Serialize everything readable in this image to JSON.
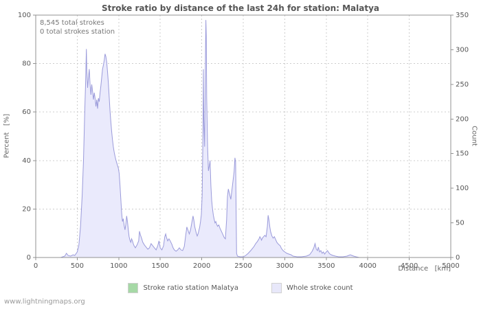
{
  "page": {
    "footer_link": "www.lightningmaps.org"
  },
  "chart": {
    "title": "Stroke ratio by distance of the last 24h for station: Malatya",
    "annotations": [
      "8,545 total strokes",
      "0 total strokes station"
    ],
    "y_left_label": "Percent   [%]",
    "y_right_label": "Count",
    "x_label": "Distance   [km]",
    "legend": [
      {
        "label": "Stroke ratio station Malatya",
        "color": "#a6d9a6"
      },
      {
        "label": "Whole stroke count",
        "color": "#e8e8fa"
      }
    ]
  },
  "chart_data": {
    "type": "area",
    "title": "Stroke ratio by distance of the last 24h for station: Malatya",
    "xlabel": "Distance [km]",
    "ylabel_left": "Percent [%]",
    "ylabel_right": "Count",
    "xlim": [
      0,
      5000
    ],
    "ylim_left_percent": [
      0,
      100
    ],
    "ylim_right_count": [
      0,
      350
    ],
    "x_ticks": [
      0,
      500,
      1000,
      1500,
      2000,
      2500,
      3000,
      3500,
      4000,
      4500,
      5000
    ],
    "y_ticks_left": [
      0,
      20,
      40,
      60,
      80,
      100
    ],
    "y_ticks_right": [
      0,
      50,
      100,
      150,
      200,
      250,
      300,
      350
    ],
    "grid": "dashed",
    "legend_position": "bottom-center",
    "totals": {
      "total_strokes": 8545,
      "total_strokes_station": 0
    },
    "series": [
      {
        "name": "Stroke ratio station Malatya",
        "axis": "left_percent",
        "color": "#a6d9a6",
        "constant_value": 0
      },
      {
        "name": "Whole stroke count",
        "axis": "right_count",
        "fill_color": "#eaeafc",
        "line_color": "#9a9ada",
        "points": [
          [
            0,
            0
          ],
          [
            300,
            0
          ],
          [
            350,
            2
          ],
          [
            370,
            6
          ],
          [
            390,
            3
          ],
          [
            420,
            2
          ],
          [
            450,
            4
          ],
          [
            470,
            3
          ],
          [
            500,
            8
          ],
          [
            520,
            18
          ],
          [
            540,
            45
          ],
          [
            560,
            90
          ],
          [
            575,
            140
          ],
          [
            590,
            210
          ],
          [
            600,
            250
          ],
          [
            610,
            301
          ],
          [
            615,
            270
          ],
          [
            625,
            245
          ],
          [
            635,
            260
          ],
          [
            645,
            272
          ],
          [
            655,
            250
          ],
          [
            665,
            235
          ],
          [
            675,
            250
          ],
          [
            685,
            240
          ],
          [
            695,
            228
          ],
          [
            705,
            238
          ],
          [
            715,
            230
          ],
          [
            725,
            218
          ],
          [
            735,
            228
          ],
          [
            745,
            215
          ],
          [
            755,
            230
          ],
          [
            765,
            225
          ],
          [
            775,
            238
          ],
          [
            785,
            248
          ],
          [
            795,
            260
          ],
          [
            805,
            272
          ],
          [
            815,
            278
          ],
          [
            825,
            285
          ],
          [
            835,
            294
          ],
          [
            845,
            290
          ],
          [
            855,
            282
          ],
          [
            865,
            268
          ],
          [
            875,
            252
          ],
          [
            885,
            232
          ],
          [
            895,
            212
          ],
          [
            905,
            196
          ],
          [
            915,
            182
          ],
          [
            925,
            170
          ],
          [
            935,
            160
          ],
          [
            945,
            152
          ],
          [
            955,
            146
          ],
          [
            965,
            141
          ],
          [
            975,
            137
          ],
          [
            985,
            133
          ],
          [
            995,
            129
          ],
          [
            1005,
            122
          ],
          [
            1015,
            105
          ],
          [
            1025,
            85
          ],
          [
            1035,
            65
          ],
          [
            1045,
            52
          ],
          [
            1055,
            56
          ],
          [
            1065,
            46
          ],
          [
            1075,
            40
          ],
          [
            1085,
            48
          ],
          [
            1095,
            60
          ],
          [
            1105,
            52
          ],
          [
            1115,
            40
          ],
          [
            1125,
            30
          ],
          [
            1135,
            25
          ],
          [
            1145,
            22
          ],
          [
            1155,
            27
          ],
          [
            1165,
            24
          ],
          [
            1175,
            20
          ],
          [
            1185,
            17
          ],
          [
            1200,
            14
          ],
          [
            1220,
            18
          ],
          [
            1240,
            24
          ],
          [
            1250,
            38
          ],
          [
            1260,
            33
          ],
          [
            1275,
            28
          ],
          [
            1290,
            22
          ],
          [
            1310,
            18
          ],
          [
            1330,
            15
          ],
          [
            1350,
            12
          ],
          [
            1370,
            14
          ],
          [
            1390,
            20
          ],
          [
            1410,
            17
          ],
          [
            1430,
            14
          ],
          [
            1450,
            11
          ],
          [
            1470,
            17
          ],
          [
            1485,
            24
          ],
          [
            1500,
            14
          ],
          [
            1520,
            11
          ],
          [
            1540,
            17
          ],
          [
            1555,
            30
          ],
          [
            1565,
            34
          ],
          [
            1575,
            29
          ],
          [
            1590,
            24
          ],
          [
            1605,
            27
          ],
          [
            1620,
            24
          ],
          [
            1640,
            19
          ],
          [
            1655,
            14
          ],
          [
            1670,
            11
          ],
          [
            1690,
            9
          ],
          [
            1710,
            11
          ],
          [
            1730,
            14
          ],
          [
            1750,
            11
          ],
          [
            1770,
            10
          ],
          [
            1790,
            16
          ],
          [
            1805,
            30
          ],
          [
            1820,
            44
          ],
          [
            1835,
            39
          ],
          [
            1850,
            34
          ],
          [
            1865,
            40
          ],
          [
            1880,
            50
          ],
          [
            1895,
            60
          ],
          [
            1905,
            54
          ],
          [
            1915,
            45
          ],
          [
            1925,
            40
          ],
          [
            1935,
            35
          ],
          [
            1945,
            31
          ],
          [
            1955,
            34
          ],
          [
            1965,
            39
          ],
          [
            1975,
            44
          ],
          [
            1985,
            52
          ],
          [
            1995,
            62
          ],
          [
            2005,
            90
          ],
          [
            2015,
            180
          ],
          [
            2020,
            272
          ],
          [
            2025,
            200
          ],
          [
            2035,
            160
          ],
          [
            2045,
            290
          ],
          [
            2050,
            343
          ],
          [
            2055,
            320
          ],
          [
            2060,
            230
          ],
          [
            2070,
            160
          ],
          [
            2080,
            125
          ],
          [
            2090,
            132
          ],
          [
            2100,
            140
          ],
          [
            2110,
            104
          ],
          [
            2120,
            82
          ],
          [
            2130,
            70
          ],
          [
            2140,
            61
          ],
          [
            2150,
            55
          ],
          [
            2160,
            50
          ],
          [
            2170,
            52
          ],
          [
            2180,
            48
          ],
          [
            2190,
            45
          ],
          [
            2205,
            47
          ],
          [
            2220,
            42
          ],
          [
            2240,
            37
          ],
          [
            2255,
            33
          ],
          [
            2270,
            29
          ],
          [
            2285,
            27
          ],
          [
            2300,
            55
          ],
          [
            2310,
            88
          ],
          [
            2320,
            99
          ],
          [
            2330,
            94
          ],
          [
            2340,
            89
          ],
          [
            2350,
            84
          ],
          [
            2360,
            94
          ],
          [
            2370,
            104
          ],
          [
            2380,
            114
          ],
          [
            2390,
            124
          ],
          [
            2400,
            144
          ],
          [
            2408,
            138
          ],
          [
            2414,
            70
          ],
          [
            2420,
            6
          ],
          [
            2430,
            2
          ],
          [
            2460,
            1
          ],
          [
            2500,
            1
          ],
          [
            2530,
            3
          ],
          [
            2560,
            6
          ],
          [
            2590,
            10
          ],
          [
            2610,
            13
          ],
          [
            2630,
            16
          ],
          [
            2650,
            20
          ],
          [
            2670,
            23
          ],
          [
            2690,
            27
          ],
          [
            2700,
            30
          ],
          [
            2710,
            28
          ],
          [
            2720,
            25
          ],
          [
            2730,
            28
          ],
          [
            2745,
            30
          ],
          [
            2760,
            32
          ],
          [
            2775,
            30
          ],
          [
            2790,
            44
          ],
          [
            2800,
            61
          ],
          [
            2810,
            54
          ],
          [
            2820,
            44
          ],
          [
            2830,
            37
          ],
          [
            2845,
            31
          ],
          [
            2860,
            28
          ],
          [
            2875,
            30
          ],
          [
            2890,
            26
          ],
          [
            2905,
            22
          ],
          [
            2925,
            19
          ],
          [
            2945,
            17
          ],
          [
            2960,
            13
          ],
          [
            2980,
            10
          ],
          [
            3000,
            8
          ],
          [
            3025,
            6
          ],
          [
            3050,
            5
          ],
          [
            3075,
            4
          ],
          [
            3100,
            2
          ],
          [
            3150,
            1
          ],
          [
            3200,
            1
          ],
          [
            3260,
            2
          ],
          [
            3300,
            4
          ],
          [
            3330,
            9
          ],
          [
            3350,
            14
          ],
          [
            3365,
            20
          ],
          [
            3380,
            12
          ],
          [
            3395,
            10
          ],
          [
            3405,
            15
          ],
          [
            3420,
            8
          ],
          [
            3435,
            10
          ],
          [
            3450,
            6
          ],
          [
            3465,
            8
          ],
          [
            3480,
            5
          ],
          [
            3500,
            8
          ],
          [
            3515,
            10
          ],
          [
            3530,
            7
          ],
          [
            3545,
            5
          ],
          [
            3560,
            4
          ],
          [
            3580,
            3
          ],
          [
            3610,
            2
          ],
          [
            3650,
            1
          ],
          [
            3700,
            1
          ],
          [
            3750,
            2
          ],
          [
            3790,
            4
          ],
          [
            3810,
            3
          ],
          [
            3830,
            2
          ],
          [
            3860,
            1
          ],
          [
            3900,
            0
          ],
          [
            4000,
            0
          ],
          [
            4200,
            0
          ],
          [
            4400,
            0
          ],
          [
            4600,
            0
          ],
          [
            4800,
            0
          ],
          [
            5000,
            0
          ]
        ]
      }
    ]
  }
}
